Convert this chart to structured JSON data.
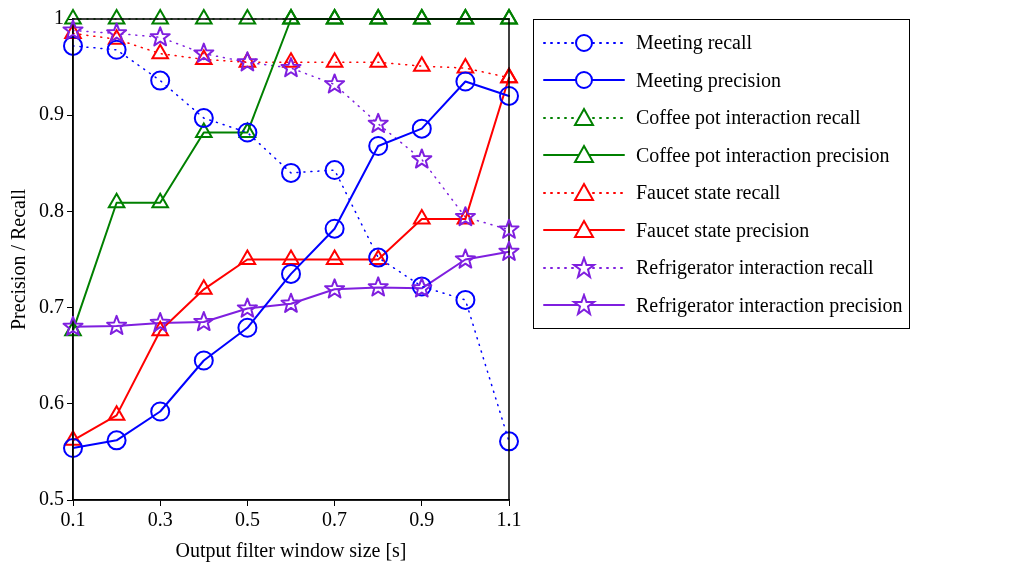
{
  "chart_data": {
    "type": "line",
    "xlabel": "Output filter window size [s]",
    "ylabel": "Precision / Recall",
    "x": [
      0.1,
      0.2,
      0.3,
      0.4,
      0.5,
      0.6,
      0.7,
      0.8,
      0.9,
      1.0,
      1.1
    ],
    "xlim": [
      0.1,
      1.1
    ],
    "xticks": [
      0.1,
      0.3,
      0.5,
      0.7,
      0.9,
      1.1
    ],
    "ylim": [
      0.5,
      1
    ],
    "yticks": [
      0.5,
      0.6,
      0.7,
      0.8,
      0.9,
      1
    ],
    "legend": "right",
    "grid": false,
    "series": [
      {
        "name": "Meeting recall",
        "color": "#0000ff",
        "marker": "circle",
        "line_style": "dotted",
        "values": [
          0.972,
          0.968,
          0.936,
          0.897,
          0.882,
          0.84,
          0.843,
          0.752,
          0.722,
          0.708,
          0.561
        ]
      },
      {
        "name": "Meeting precision",
        "color": "#0000ff",
        "marker": "circle",
        "line_style": "solid",
        "values": [
          0.554,
          0.562,
          0.592,
          0.645,
          0.679,
          0.735,
          0.782,
          0.868,
          0.886,
          0.935,
          0.92
        ]
      },
      {
        "name": "Coffee pot interaction recall",
        "color": "#008000",
        "marker": "triangle",
        "line_style": "dotted",
        "values": [
          1,
          1,
          1,
          1,
          1,
          1,
          1,
          1,
          1,
          1,
          1
        ]
      },
      {
        "name": "Coffee pot interaction precision",
        "color": "#008000",
        "marker": "triangle",
        "line_style": "solid",
        "values": [
          0.676,
          0.809,
          0.809,
          0.882,
          0.882,
          1,
          1,
          1,
          1,
          1,
          1
        ]
      },
      {
        "name": "Faucet state recall",
        "color": "#ff0000",
        "marker": "triangle",
        "line_style": "dotted",
        "values": [
          0.985,
          0.979,
          0.964,
          0.958,
          0.955,
          0.955,
          0.955,
          0.955,
          0.951,
          0.949,
          0.939
        ]
      },
      {
        "name": "Faucet state precision",
        "color": "#ff0000",
        "marker": "triangle",
        "line_style": "solid",
        "values": [
          0.562,
          0.588,
          0.676,
          0.719,
          0.75,
          0.75,
          0.75,
          0.75,
          0.792,
          0.792,
          0.939
        ]
      },
      {
        "name": "Refrigerator interaction recall",
        "color": "#7f1fdf",
        "marker": "star",
        "line_style": "dotted",
        "values": [
          0.988,
          0.985,
          0.981,
          0.964,
          0.955,
          0.949,
          0.932,
          0.891,
          0.854,
          0.794,
          0.781
        ]
      },
      {
        "name": "Refrigerator interaction precision",
        "color": "#7f1fdf",
        "marker": "star",
        "line_style": "solid",
        "values": [
          0.68,
          0.681,
          0.684,
          0.685,
          0.699,
          0.704,
          0.719,
          0.721,
          0.72,
          0.75,
          0.758
        ]
      }
    ]
  }
}
